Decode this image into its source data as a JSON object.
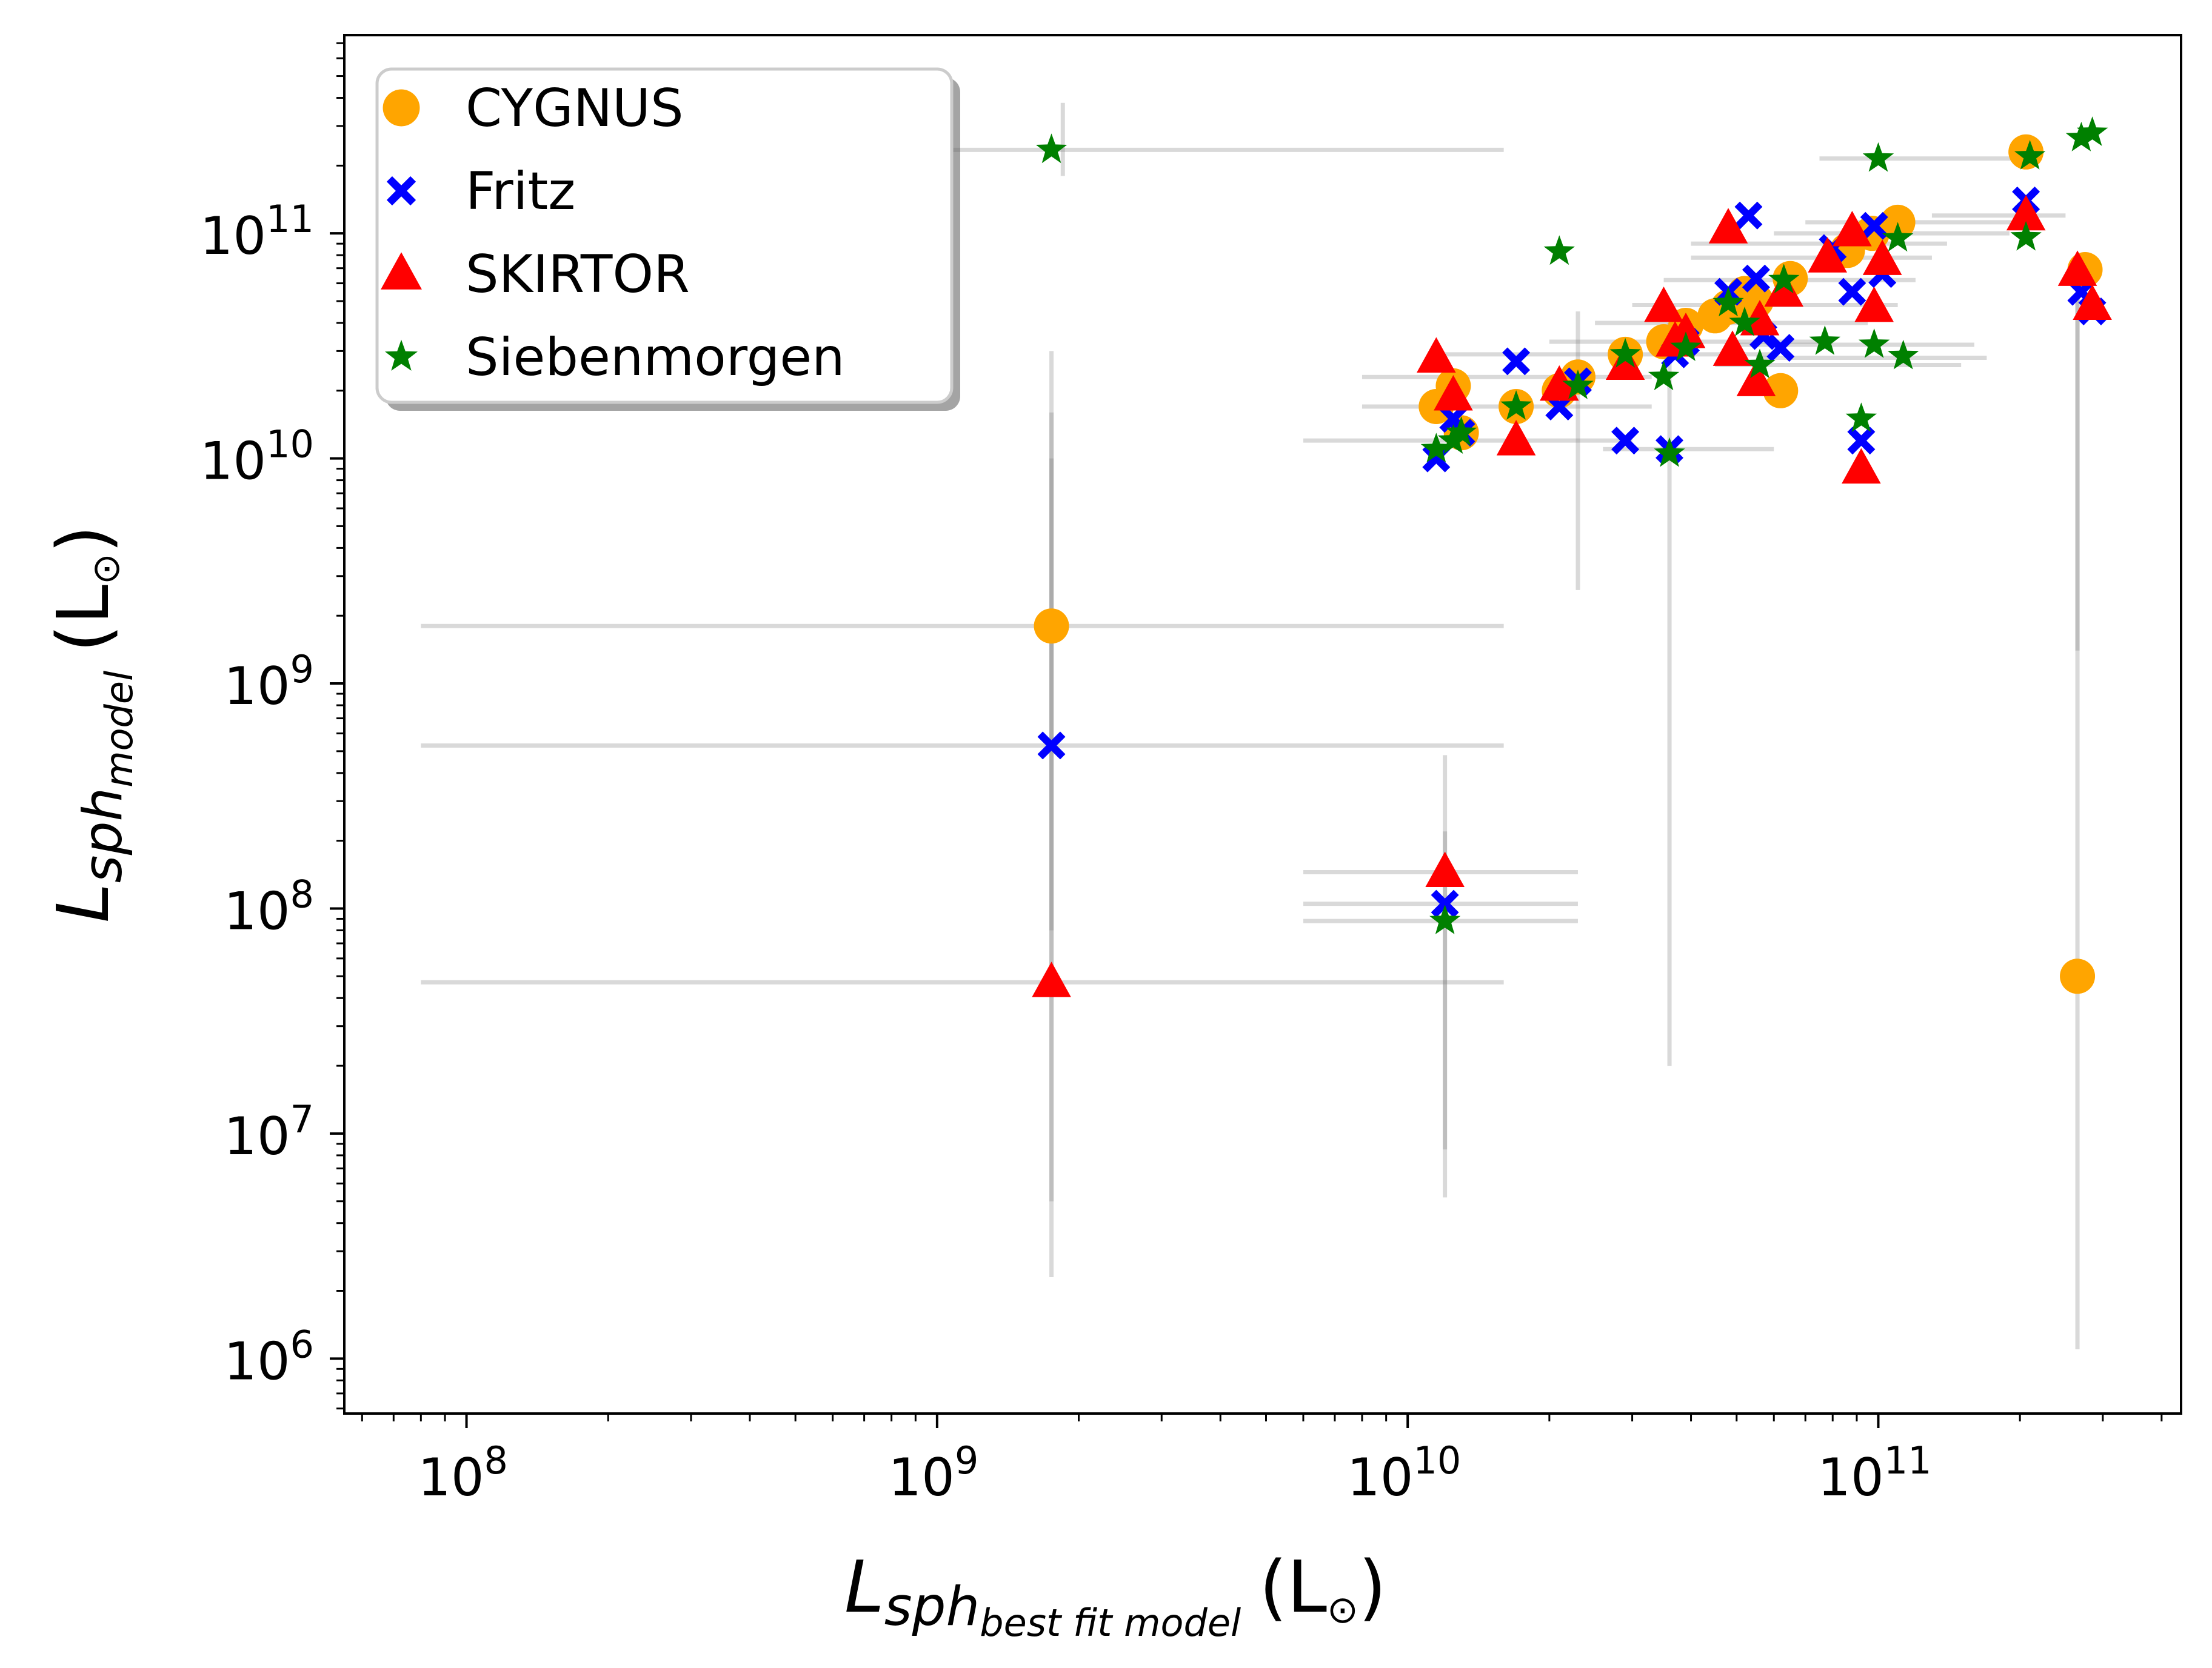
{
  "chart_data": {
    "type": "scatter",
    "scale": {
      "x": "log",
      "y": "log"
    },
    "xlim": [
      55000000.0,
      440000000000.0
    ],
    "ylim": [
      570000.0,
      760000000000.0
    ],
    "x_ticks": [
      {
        "value": 100000000.0,
        "base": "10",
        "exp": "8"
      },
      {
        "value": 1000000000.0,
        "base": "10",
        "exp": "9"
      },
      {
        "value": 10000000000.0,
        "base": "10",
        "exp": "10"
      },
      {
        "value": 100000000000.0,
        "base": "10",
        "exp": "11"
      }
    ],
    "y_ticks": [
      {
        "value": 1000000.0,
        "base": "10",
        "exp": "6"
      },
      {
        "value": 10000000.0,
        "base": "10",
        "exp": "7"
      },
      {
        "value": 100000000.0,
        "base": "10",
        "exp": "8"
      },
      {
        "value": 1000000000.0,
        "base": "10",
        "exp": "9"
      },
      {
        "value": 10000000000.0,
        "base": "10",
        "exp": "10"
      },
      {
        "value": 100000000000.0,
        "base": "10",
        "exp": "11"
      }
    ],
    "xlabel": {
      "main": "L",
      "sub": "sph",
      "subsub": "best fit model",
      "unit_open": "(L",
      "unit_close": ")"
    },
    "ylabel": {
      "main": "L",
      "sub": "sph",
      "subsub": "model",
      "unit_open": "(L",
      "unit_close": ")"
    },
    "legend_position": "upper-left",
    "series": [
      {
        "name": "CYGNUS",
        "marker": "circle",
        "color": "#FFA500",
        "points": [
          [
            1750000000.0,
            1800000000.0
          ],
          [
            11500000000.0,
            17000000000.0
          ],
          [
            12500000000.0,
            21000000000.0
          ],
          [
            13000000000.0,
            13000000000.0
          ],
          [
            17000000000.0,
            17000000000.0
          ],
          [
            21000000000.0,
            20000000000.0
          ],
          [
            23000000000.0,
            23000000000.0
          ],
          [
            29000000000.0,
            29000000000.0
          ],
          [
            35000000000.0,
            33000000000.0
          ],
          [
            39000000000.0,
            39000000000.0
          ],
          [
            45000000000.0,
            43000000000.0
          ],
          [
            48000000000.0,
            47000000000.0
          ],
          [
            52000000000.0,
            54000000000.0
          ],
          [
            55000000000.0,
            50000000000.0
          ],
          [
            62000000000.0,
            20000000000.0
          ],
          [
            65000000000.0,
            63000000000.0
          ],
          [
            86000000000.0,
            84000000000.0
          ],
          [
            97000000000.0,
            100000000000.0
          ],
          [
            110000000000.0,
            112000000000.0
          ],
          [
            206000000000.0,
            230000000000.0
          ],
          [
            275000000000.0,
            69000000000.0
          ],
          [
            265000000000.0,
            50000000.0
          ]
        ]
      },
      {
        "name": "Fritz",
        "marker": "x",
        "color": "#0000FF",
        "points": [
          [
            1750000000.0,
            530000000.0
          ],
          [
            12000000000.0,
            105000000.0
          ],
          [
            11500000000.0,
            10000000000.0
          ],
          [
            12500000000.0,
            15000000000.0
          ],
          [
            13000000000.0,
            13000000000.0
          ],
          [
            17000000000.0,
            27000000000.0
          ],
          [
            21000000000.0,
            17000000000.0
          ],
          [
            23000000000.0,
            22000000000.0
          ],
          [
            29000000000.0,
            12000000000.0
          ],
          [
            36000000000.0,
            11000000000.0
          ],
          [
            37000000000.0,
            29000000000.0
          ],
          [
            39000000000.0,
            33000000000.0
          ],
          [
            48000000000.0,
            55000000000.0
          ],
          [
            53000000000.0,
            120000000000.0
          ],
          [
            55000000000.0,
            63000000000.0
          ],
          [
            57000000000.0,
            35000000000.0
          ],
          [
            62000000000.0,
            31000000000.0
          ],
          [
            80000000000.0,
            86000000000.0
          ],
          [
            88000000000.0,
            55000000000.0
          ],
          [
            92000000000.0,
            12000000000.0
          ],
          [
            98000000000.0,
            108000000000.0
          ],
          [
            102000000000.0,
            66000000000.0
          ],
          [
            206000000000.0,
            140000000000.0
          ],
          [
            270000000000.0,
            55000000000.0
          ],
          [
            285000000000.0,
            45000000000.0
          ]
        ]
      },
      {
        "name": "SKIRTOR",
        "marker": "triangle",
        "color": "#FF0000",
        "points": [
          [
            1750000000.0,
            47000000.0
          ],
          [
            12000000000.0,
            145000000.0
          ],
          [
            11500000000.0,
            28000000000.0
          ],
          [
            12500000000.0,
            19000000000.0
          ],
          [
            17000000000.0,
            12000000000.0
          ],
          [
            21000000000.0,
            21000000000.0
          ],
          [
            29000000000.0,
            26000000000.0
          ],
          [
            35000000000.0,
            47000000000.0
          ],
          [
            37000000000.0,
            33000000000.0
          ],
          [
            39000000000.0,
            36000000000.0
          ],
          [
            48000000000.0,
            105000000000.0
          ],
          [
            49000000000.0,
            30000000000.0
          ],
          [
            55000000000.0,
            22000000000.0
          ],
          [
            56000000000.0,
            41000000000.0
          ],
          [
            63000000000.0,
            55000000000.0
          ],
          [
            78000000000.0,
            78000000000.0
          ],
          [
            88000000000.0,
            102000000000.0
          ],
          [
            92000000000.0,
            9000000000.0
          ],
          [
            98000000000.0,
            47000000000.0
          ],
          [
            102000000000.0,
            76000000000.0
          ],
          [
            206000000000.0,
            120000000000.0
          ],
          [
            265000000000.0,
            68000000000.0
          ],
          [
            285000000000.0,
            48000000000.0
          ]
        ]
      },
      {
        "name": "Siebenmorgen",
        "marker": "star",
        "color": "#008000",
        "points": [
          [
            1750000000.0,
            235000000000.0
          ],
          [
            12000000000.0,
            88000000.0
          ],
          [
            11500000000.0,
            11000000000.0
          ],
          [
            12500000000.0,
            12000000000.0
          ],
          [
            13000000000.0,
            13000000000.0
          ],
          [
            17000000000.0,
            17000000000.0
          ],
          [
            21000000000.0,
            83000000000.0
          ],
          [
            23000000000.0,
            21000000000.0
          ],
          [
            29000000000.0,
            29000000000.0
          ],
          [
            35000000000.0,
            23000000000.0
          ],
          [
            36000000000.0,
            10500000000.0
          ],
          [
            39000000000.0,
            31000000000.0
          ],
          [
            48000000000.0,
            49000000000.0
          ],
          [
            52000000000.0,
            40000000000.0
          ],
          [
            56000000000.0,
            26000000000.0
          ],
          [
            63000000000.0,
            62000000000.0
          ],
          [
            77000000000.0,
            33000000000.0
          ],
          [
            92000000000.0,
            15000000000.0
          ],
          [
            98000000000.0,
            32000000000.0
          ],
          [
            100000000000.0,
            215000000000.0
          ],
          [
            110000000000.0,
            95000000000.0
          ],
          [
            113000000000.0,
            28500000000.0
          ],
          [
            206000000000.0,
            96000000000.0
          ],
          [
            210000000000.0,
            220000000000.0
          ],
          [
            270000000000.0,
            265000000000.0
          ],
          [
            285000000000.0,
            280000000000.0
          ]
        ]
      }
    ],
    "x_error_bars": [
      [
        [
          80000000.0,
          16000000000.0
        ],
        235000000000.0
      ],
      [
        [
          80000000.0,
          16000000000.0
        ],
        1800000000.0
      ],
      [
        [
          80000000.0,
          16000000000.0
        ],
        530000000.0
      ],
      [
        [
          80000000.0,
          16000000000.0
        ],
        47000000.0
      ],
      [
        [
          6000000000.0,
          23000000000.0
        ],
        145000000.0
      ],
      [
        [
          6000000000.0,
          23000000000.0
        ],
        105000000.0
      ],
      [
        [
          6000000000.0,
          23000000000.0
        ],
        88000000.0
      ],
      [
        [
          6000000000.0,
          30000000000.0
        ],
        12000000000.0
      ],
      [
        [
          8000000000.0,
          33000000000.0
        ],
        17000000000.0
      ],
      [
        [
          8000000000.0,
          33000000000.0
        ],
        23000000000.0
      ],
      [
        [
          12000000000.0,
          60000000000.0
        ],
        29000000000.0
      ],
      [
        [
          20000000000.0,
          80000000000.0
        ],
        33000000000.0
      ],
      [
        [
          25000000000.0,
          95000000000.0
        ],
        40000000000.0
      ],
      [
        [
          30000000000.0,
          110000000000.0
        ],
        48000000000.0
      ],
      [
        [
          35000000000.0,
          120000000000.0
        ],
        62000000000.0
      ],
      [
        [
          40000000000.0,
          130000000000.0
        ],
        78000000000.0
      ],
      [
        [
          40000000000.0,
          140000000000.0
        ],
        90000000000.0
      ],
      [
        [
          45000000000.0,
          150000000000.0
        ],
        26000000000.0
      ],
      [
        [
          50000000000.0,
          160000000000.0
        ],
        32000000000.0
      ],
      [
        [
          55000000000.0,
          170000000000.0
        ],
        28000000000.0
      ],
      [
        [
          60000000000.0,
          190000000000.0
        ],
        100000000000.0
      ],
      [
        [
          70000000000.0,
          220000000000.0
        ],
        112000000000.0
      ],
      [
        [
          75000000000.0,
          210000000000.0
        ],
        215000000000.0
      ],
      [
        [
          130000000000.0,
          250000000000.0
        ],
        120000000000.0
      ],
      [
        [
          26000000000.0,
          60000000000.0
        ],
        11000000000.0
      ]
    ],
    "y_error_bars": [
      [
        1750000000.0,
        [
          2300000.0,
          30000000000.0
        ]
      ],
      [
        1750000000.0,
        [
          5000000.0,
          16000000000.0
        ]
      ],
      [
        1750000000.0,
        [
          80000000.0,
          10000000000.0
        ]
      ],
      [
        12000000000.0,
        [
          5200000.0,
          480000000.0
        ]
      ],
      [
        12000000000.0,
        [
          8500000.0,
          220000000.0
        ]
      ],
      [
        1850000000.0,
        [
          180000000000.0,
          380000000000.0
        ]
      ],
      [
        23000000000.0,
        [
          2600000000.0,
          45000000000.0
        ]
      ],
      [
        36000000000.0,
        [
          20000000.0,
          40000000000.0
        ]
      ],
      [
        265000000000.0,
        [
          1100000.0,
          65000000000.0
        ]
      ],
      [
        265000000000.0,
        [
          1400000000.0,
          70000000000.0
        ]
      ]
    ]
  },
  "legend": [
    {
      "label": "CYGNUS",
      "marker": "circle",
      "color": "#FFA500"
    },
    {
      "label": "Fritz",
      "marker": "x",
      "color": "#0000FF"
    },
    {
      "label": "SKIRTOR",
      "marker": "triangle",
      "color": "#FF0000"
    },
    {
      "label": "Siebenmorgen",
      "marker": "star",
      "color": "#008000"
    }
  ],
  "colors": {
    "errorbar": "#808080",
    "axis": "#000000"
  }
}
